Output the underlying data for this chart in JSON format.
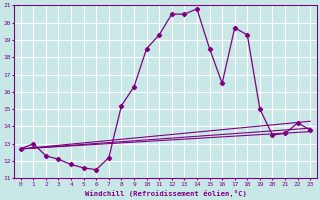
{
  "xlabel": "Windchill (Refroidissement éolien,°C)",
  "xlim": [
    -0.5,
    23.5
  ],
  "ylim": [
    11,
    21
  ],
  "yticks": [
    11,
    12,
    13,
    14,
    15,
    16,
    17,
    18,
    19,
    20,
    21
  ],
  "xticks": [
    0,
    1,
    2,
    3,
    4,
    5,
    6,
    7,
    8,
    9,
    10,
    11,
    12,
    13,
    14,
    15,
    16,
    17,
    18,
    19,
    20,
    21,
    22,
    23
  ],
  "background_color": "#c8e8e8",
  "grid_color": "#ffffff",
  "line_color": "#800080",
  "lines": [
    {
      "x": [
        0,
        1,
        2,
        3,
        4,
        5,
        6,
        7,
        8,
        9,
        10,
        11,
        12,
        13,
        14,
        15,
        16,
        17,
        18,
        19,
        20,
        21,
        22,
        23
      ],
      "y": [
        12.7,
        13.0,
        12.3,
        12.1,
        11.8,
        11.6,
        11.5,
        12.2,
        15.2,
        16.3,
        18.5,
        19.3,
        20.5,
        20.5,
        20.8,
        18.5,
        16.5,
        19.7,
        19.3,
        15.0,
        13.5,
        13.6,
        14.2,
        13.8
      ],
      "marker": true
    },
    {
      "x": [
        0,
        23
      ],
      "y": [
        12.7,
        14.3
      ],
      "marker": false
    },
    {
      "x": [
        0,
        23
      ],
      "y": [
        12.7,
        13.7
      ],
      "marker": false
    },
    {
      "x": [
        0,
        23
      ],
      "y": [
        12.7,
        13.9
      ],
      "marker": false
    }
  ]
}
